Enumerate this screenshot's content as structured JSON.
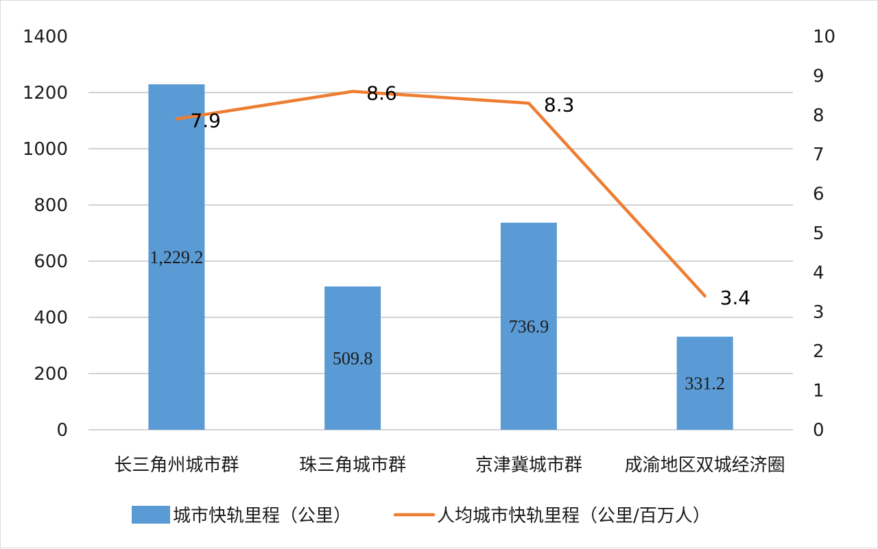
{
  "chart_data": {
    "type": "bar",
    "categories": [
      "长三角州城市群",
      "珠三角城市群",
      "京津冀城市群",
      "成渝地区双城经济圈"
    ],
    "series": [
      {
        "name": "城市快轨里程（公里）",
        "type": "bar",
        "axis": "left",
        "values": [
          1229.2,
          509.8,
          736.9,
          331.2
        ],
        "data_labels": [
          "1,229.2",
          "509.8",
          "736.9",
          "331.2"
        ],
        "color": "#5b9bd5"
      },
      {
        "name": "人均城市快轨里程（公里/百万人）",
        "type": "line",
        "axis": "right",
        "values": [
          7.9,
          8.6,
          8.3,
          3.4
        ],
        "data_labels": [
          "7.9",
          "8.6",
          "8.3",
          "3.4"
        ],
        "color": "#ed7d31"
      }
    ],
    "y_left": {
      "ylim": [
        0,
        1400
      ],
      "ticks": [
        "0",
        "200",
        "400",
        "600",
        "800",
        "1000",
        "1200",
        "1400"
      ]
    },
    "y_right": {
      "ylim": [
        0,
        10
      ],
      "ticks": [
        "0",
        "1",
        "2",
        "3",
        "4",
        "5",
        "6",
        "7",
        "8",
        "9",
        "10"
      ]
    },
    "grid": true,
    "legend_position": "bottom"
  }
}
